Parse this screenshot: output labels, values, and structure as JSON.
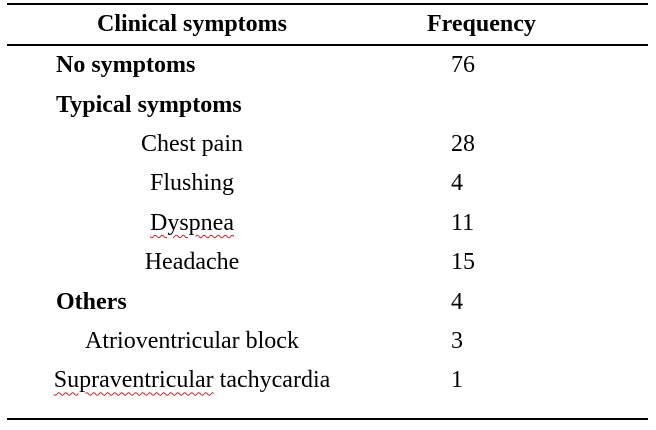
{
  "document": {
    "background_color": "#ffffff",
    "text_color": "#000000",
    "rule_color": "#000000",
    "spellcheck_squiggle_color": "#cc2222"
  },
  "table": {
    "headers": {
      "symptoms": "Clinical symptoms",
      "frequency": "Frequency"
    },
    "rows": [
      {
        "label": "No symptoms",
        "frequency": "76"
      },
      {
        "label": "Typical symptoms",
        "frequency": ""
      },
      {
        "label": "Chest pain",
        "frequency": "28"
      },
      {
        "label": "Flushing",
        "frequency": "4"
      },
      {
        "label": "Dyspnea",
        "frequency": "11"
      },
      {
        "label": "Headache",
        "frequency": "15"
      },
      {
        "label": "Others",
        "frequency": "4"
      },
      {
        "label": "Atrioventricular block",
        "frequency": "3"
      },
      {
        "label_part1": "Supraventricular",
        "label_part2": "tachycardia",
        "frequency": "1"
      }
    ]
  },
  "chart_data": {
    "type": "table",
    "title": "Clinical symptoms and Frequency",
    "columns": [
      "Clinical symptoms",
      "Frequency"
    ],
    "data": [
      [
        "No symptoms",
        76
      ],
      [
        "Typical symptoms",
        null
      ],
      [
        "Chest pain",
        28
      ],
      [
        "Flushing",
        4
      ],
      [
        "Dyspnea",
        11
      ],
      [
        "Headache",
        15
      ],
      [
        "Others",
        4
      ],
      [
        "Atrioventricular block",
        3
      ],
      [
        "Supraventricular tachycardia",
        1
      ]
    ]
  }
}
